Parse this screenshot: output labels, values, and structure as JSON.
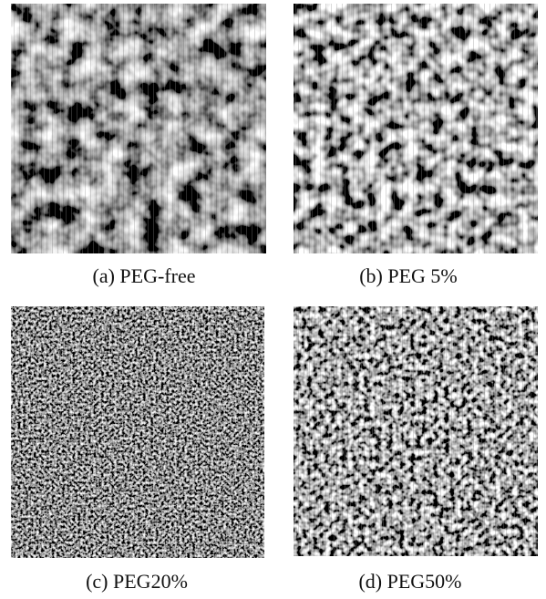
{
  "panels": [
    {
      "caption": "(a) PEG-free"
    },
    {
      "caption": "(b) PEG 5%"
    },
    {
      "caption": "(c) PEG20%"
    },
    {
      "caption": "(d) PEG50%"
    }
  ]
}
